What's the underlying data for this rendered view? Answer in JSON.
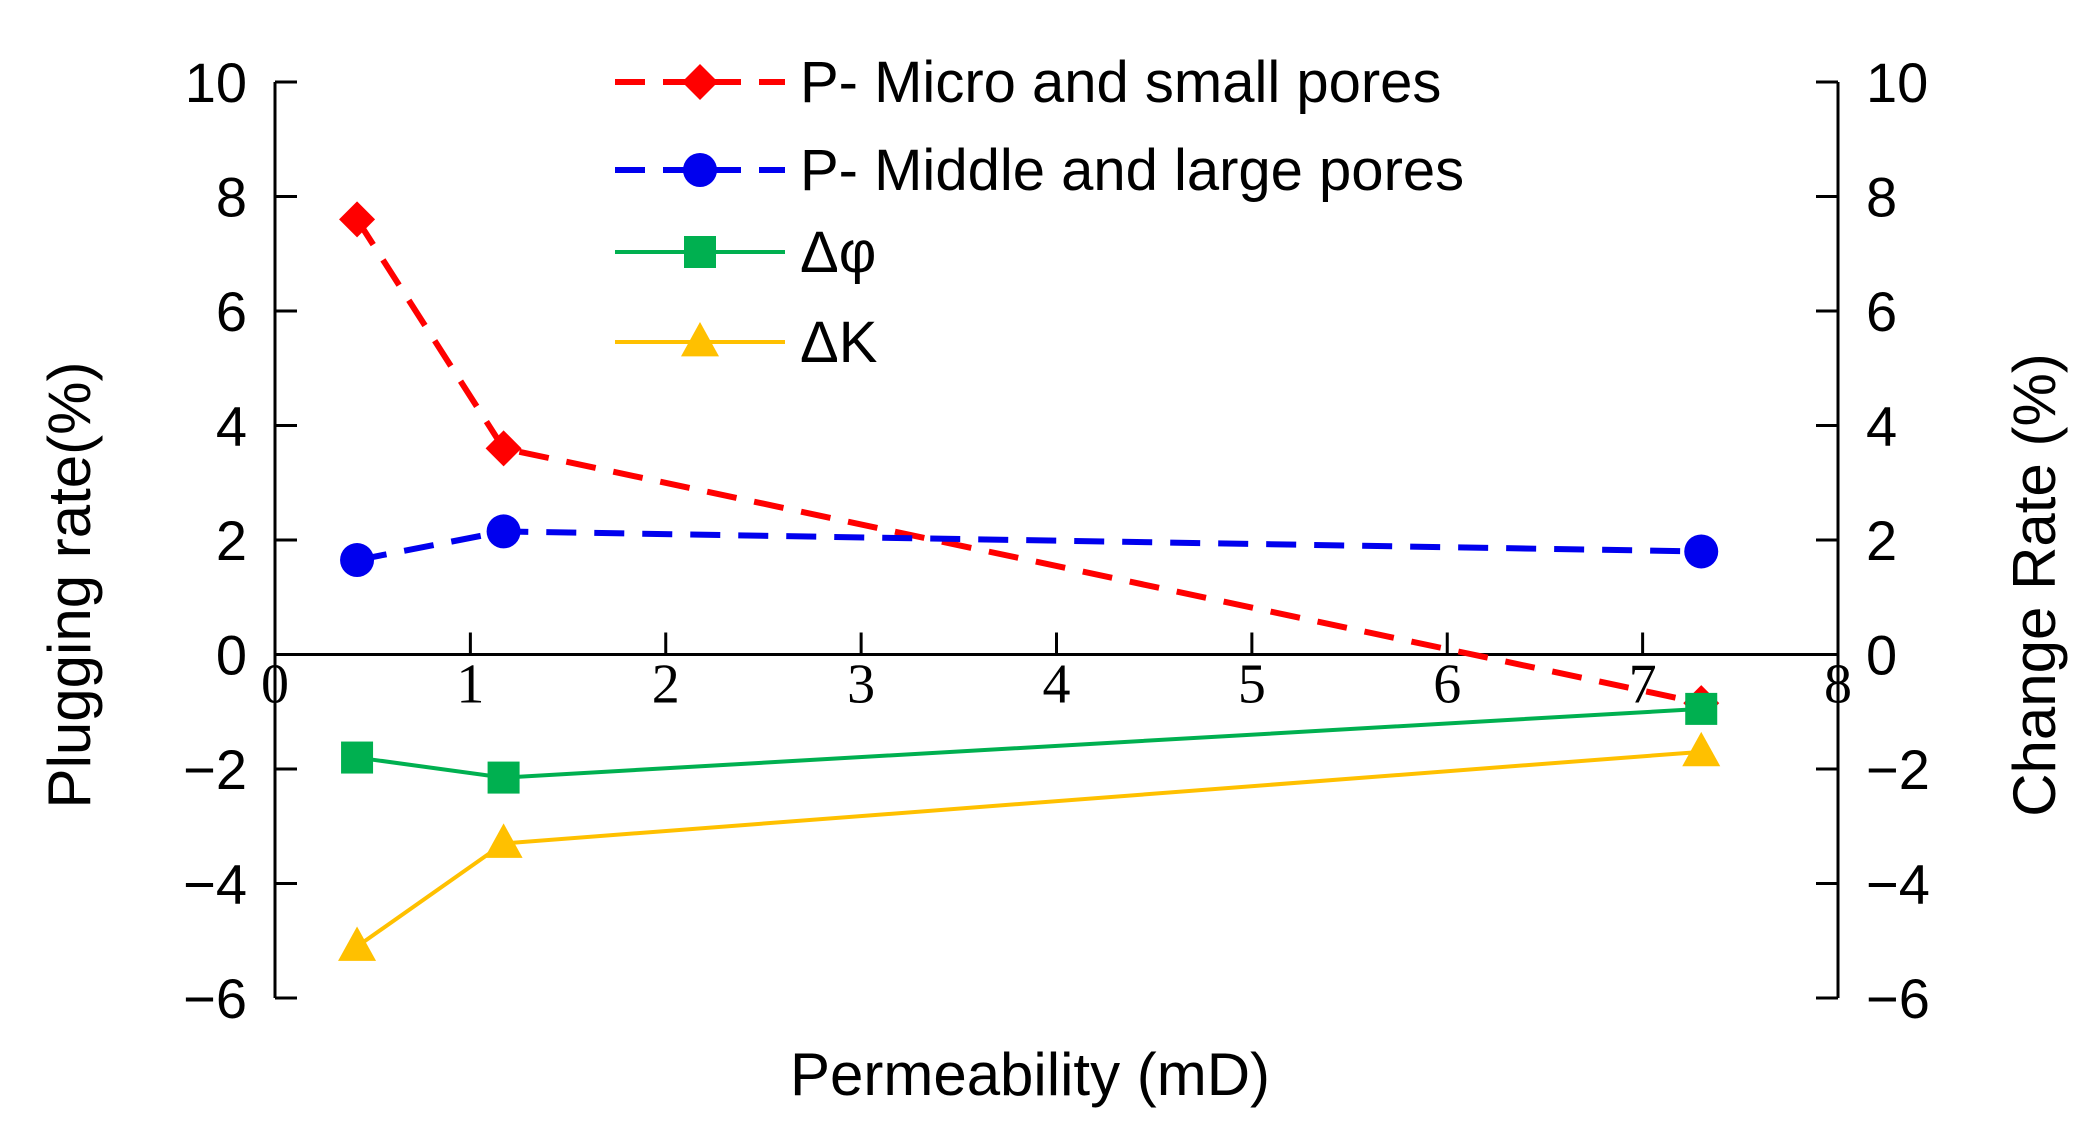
{
  "chart_data": {
    "type": "line",
    "title": "",
    "xlabel": "Permeability (mD)",
    "ylabel_left": "Plugging rate(%)",
    "ylabel_right": "Change Rate (%)",
    "xlim": [
      0,
      8
    ],
    "ylim": [
      -6,
      10
    ],
    "x_ticks": [
      0,
      1,
      2,
      3,
      4,
      5,
      6,
      7,
      8
    ],
    "y_ticks": [
      -6,
      -4,
      -2,
      0,
      2,
      4,
      6,
      8,
      10
    ],
    "y_tick_labels": [
      "−6",
      "−4",
      "−2",
      "0",
      "2",
      "4",
      "6",
      "8",
      "10"
    ],
    "legend_position": "top-center",
    "series": [
      {
        "name": "P- Micro and small pores",
        "color": "#ff0000",
        "line_style": "dashed",
        "marker": "diamond",
        "x": [
          0.42,
          1.17,
          7.3
        ],
        "y": [
          7.6,
          3.6,
          -0.85
        ]
      },
      {
        "name": "P- Middle and large pores",
        "color": "#0000ee",
        "line_style": "dashed",
        "marker": "circle",
        "x": [
          0.42,
          1.17,
          7.3
        ],
        "y": [
          1.65,
          2.15,
          1.8
        ]
      },
      {
        "name": "Δφ",
        "color": "#00b050",
        "line_style": "solid",
        "marker": "square",
        "x": [
          0.42,
          1.17,
          7.3
        ],
        "y": [
          -1.8,
          -2.15,
          -0.95
        ]
      },
      {
        "name": "ΔK",
        "color": "#ffc000",
        "line_style": "solid",
        "marker": "triangle",
        "x": [
          0.42,
          1.17,
          7.3
        ],
        "y": [
          -5.1,
          -3.3,
          -1.7
        ]
      }
    ]
  }
}
